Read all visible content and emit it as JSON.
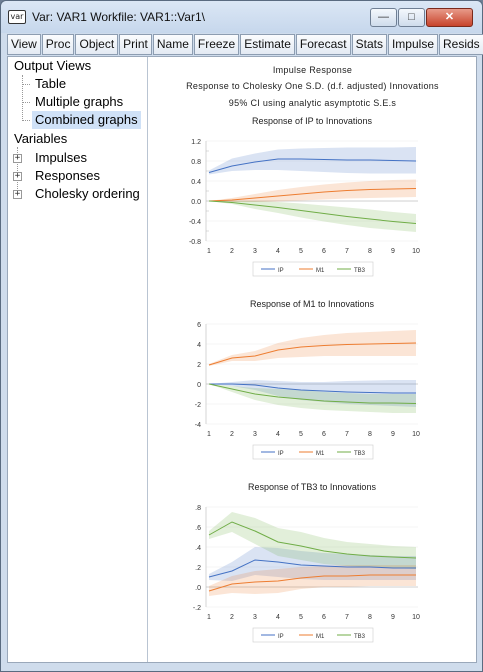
{
  "window": {
    "icon_label": "var",
    "title": "Var: VAR1   Workfile: VAR1::Var1\\"
  },
  "toolbar": {
    "groups": [
      [
        "View",
        "Proc",
        "Object"
      ],
      [
        "Print",
        "Name",
        "Freeze"
      ],
      [
        "Estimate",
        "Forecast",
        "Stats",
        "Impulse",
        "Resids"
      ]
    ]
  },
  "tree": {
    "output_views": "Output Views",
    "table": "Table",
    "multiple_graphs": "Multiple graphs",
    "combined_graphs": "Combined graphs",
    "variables": "Variables",
    "impulses": "Impulses",
    "responses": "Responses",
    "cholesky": "Cholesky ordering"
  },
  "header": {
    "line1": "Impulse Response",
    "line2": "Response to Cholesky One S.D. (d.f. adjusted) Innovations",
    "line3": "95% CI using analytic asymptotic S.E.s"
  },
  "colors": {
    "IP": "#4472c4",
    "M1": "#ed7d31",
    "TB3": "#70ad47"
  },
  "chart_data": [
    {
      "type": "area",
      "title": "Response of IP to Innovations",
      "x": [
        1,
        2,
        3,
        4,
        5,
        6,
        7,
        8,
        9,
        10
      ],
      "ylim": [
        -0.8,
        1.2
      ],
      "yticks": [
        "-0.8",
        "-0.4",
        "0.0",
        "0.4",
        "0.8",
        "1.2"
      ],
      "ytick_values": [
        -0.8,
        -0.4,
        0.0,
        0.4,
        0.8,
        1.2
      ],
      "yticks_minor": [
        -0.6,
        -0.2,
        0.2,
        0.6,
        1.0
      ],
      "yticks_minor_labels": [
        "-0.6",
        "-0.2",
        "0.2",
        "0.6",
        "1.0"
      ],
      "legend": [
        "IP",
        "M1",
        "TB3"
      ],
      "series": [
        {
          "name": "IP",
          "values": [
            0.57,
            0.7,
            0.78,
            0.84,
            0.84,
            0.83,
            0.82,
            0.82,
            0.81,
            0.8
          ],
          "lower": [
            0.53,
            0.6,
            0.62,
            0.62,
            0.6,
            0.58,
            0.56,
            0.55,
            0.55,
            0.55
          ],
          "upper": [
            0.61,
            0.85,
            0.95,
            1.03,
            1.05,
            1.06,
            1.07,
            1.07,
            1.07,
            1.08
          ]
        },
        {
          "name": "M1",
          "values": [
            0.0,
            0.02,
            0.06,
            0.1,
            0.14,
            0.18,
            0.21,
            0.23,
            0.24,
            0.25
          ],
          "lower": [
            0.0,
            -0.02,
            -0.02,
            -0.01,
            0.01,
            0.03,
            0.05,
            0.06,
            0.07,
            0.08
          ],
          "upper": [
            0.0,
            0.06,
            0.14,
            0.22,
            0.28,
            0.33,
            0.37,
            0.4,
            0.42,
            0.43
          ]
        },
        {
          "name": "TB3",
          "values": [
            0.0,
            -0.03,
            -0.08,
            -0.13,
            -0.19,
            -0.25,
            -0.31,
            -0.36,
            -0.41,
            -0.45
          ],
          "lower": [
            0.0,
            -0.06,
            -0.16,
            -0.24,
            -0.33,
            -0.41,
            -0.48,
            -0.54,
            -0.58,
            -0.62
          ],
          "upper": [
            0.0,
            0.0,
            0.0,
            -0.02,
            -0.05,
            -0.09,
            -0.13,
            -0.17,
            -0.22,
            -0.26
          ]
        }
      ]
    },
    {
      "type": "area",
      "title": "Response of M1 to Innovations",
      "x": [
        1,
        2,
        3,
        4,
        5,
        6,
        7,
        8,
        9,
        10
      ],
      "ylim": [
        -4,
        6
      ],
      "yticks": [
        "-4",
        "-2",
        "0",
        "2",
        "4",
        "6"
      ],
      "ytick_values": [
        -4,
        -2,
        0,
        2,
        4,
        6
      ],
      "yticks_minor": [],
      "yticks_minor_labels": [],
      "legend": [
        "IP",
        "M1",
        "TB3"
      ],
      "series": [
        {
          "name": "IP",
          "values": [
            0.0,
            0.0,
            -0.1,
            -0.4,
            -0.6,
            -0.7,
            -0.8,
            -0.85,
            -0.9,
            -0.9
          ],
          "lower": [
            0.0,
            -0.2,
            -0.6,
            -1.2,
            -1.6,
            -1.8,
            -2.0,
            -2.1,
            -2.2,
            -2.3
          ],
          "upper": [
            0.0,
            0.2,
            0.4,
            0.3,
            0.2,
            0.2,
            0.3,
            0.35,
            0.4,
            0.4
          ]
        },
        {
          "name": "M1",
          "values": [
            1.9,
            2.6,
            2.8,
            3.4,
            3.7,
            3.85,
            3.95,
            4.0,
            4.05,
            4.1
          ],
          "lower": [
            1.8,
            2.3,
            2.3,
            2.6,
            2.7,
            2.8,
            2.8,
            2.8,
            2.8,
            2.8
          ],
          "upper": [
            2.0,
            2.9,
            3.3,
            4.1,
            4.6,
            4.9,
            5.1,
            5.2,
            5.3,
            5.4
          ]
        },
        {
          "name": "TB3",
          "values": [
            0.0,
            -0.5,
            -1.0,
            -1.3,
            -1.5,
            -1.7,
            -1.8,
            -1.9,
            -1.9,
            -1.95
          ],
          "lower": [
            0.0,
            -0.8,
            -1.6,
            -2.1,
            -2.4,
            -2.6,
            -2.7,
            -2.8,
            -2.9,
            -2.9
          ],
          "upper": [
            0.0,
            -0.2,
            -0.4,
            -0.5,
            -0.6,
            -0.8,
            -0.9,
            -1.0,
            -1.0,
            -1.0
          ]
        }
      ]
    },
    {
      "type": "area",
      "title": "Response of TB3 to Innovations",
      "x": [
        1,
        2,
        3,
        4,
        5,
        6,
        7,
        8,
        9,
        10
      ],
      "ylim": [
        -0.2,
        0.8
      ],
      "yticks": [
        "-.2",
        ".0",
        ".2",
        ".4",
        ".6",
        ".8"
      ],
      "ytick_values": [
        -0.2,
        0.0,
        0.2,
        0.4,
        0.6,
        0.8
      ],
      "yticks_minor": [],
      "yticks_minor_labels": [],
      "legend": [
        "IP",
        "M1",
        "TB3"
      ],
      "series": [
        {
          "name": "IP",
          "values": [
            0.1,
            0.16,
            0.27,
            0.25,
            0.22,
            0.21,
            0.2,
            0.2,
            0.19,
            0.19
          ],
          "lower": [
            0.07,
            0.06,
            0.12,
            0.1,
            0.08,
            0.07,
            0.07,
            0.07,
            0.07,
            0.07
          ],
          "upper": [
            0.13,
            0.25,
            0.4,
            0.39,
            0.36,
            0.34,
            0.33,
            0.32,
            0.31,
            0.31
          ]
        },
        {
          "name": "M1",
          "values": [
            -0.04,
            0.03,
            0.05,
            0.06,
            0.09,
            0.11,
            0.11,
            0.12,
            0.12,
            0.12
          ],
          "lower": [
            -0.09,
            -0.06,
            -0.07,
            -0.06,
            -0.02,
            0.0,
            0.0,
            0.01,
            0.01,
            0.01
          ],
          "upper": [
            0.01,
            0.11,
            0.16,
            0.18,
            0.2,
            0.21,
            0.22,
            0.22,
            0.22,
            0.22
          ]
        },
        {
          "name": "TB3",
          "values": [
            0.52,
            0.65,
            0.56,
            0.45,
            0.41,
            0.36,
            0.33,
            0.31,
            0.3,
            0.29
          ],
          "lower": [
            0.48,
            0.55,
            0.43,
            0.31,
            0.27,
            0.23,
            0.21,
            0.2,
            0.19,
            0.18
          ],
          "upper": [
            0.56,
            0.75,
            0.69,
            0.59,
            0.55,
            0.49,
            0.45,
            0.43,
            0.41,
            0.4
          ]
        }
      ]
    }
  ]
}
